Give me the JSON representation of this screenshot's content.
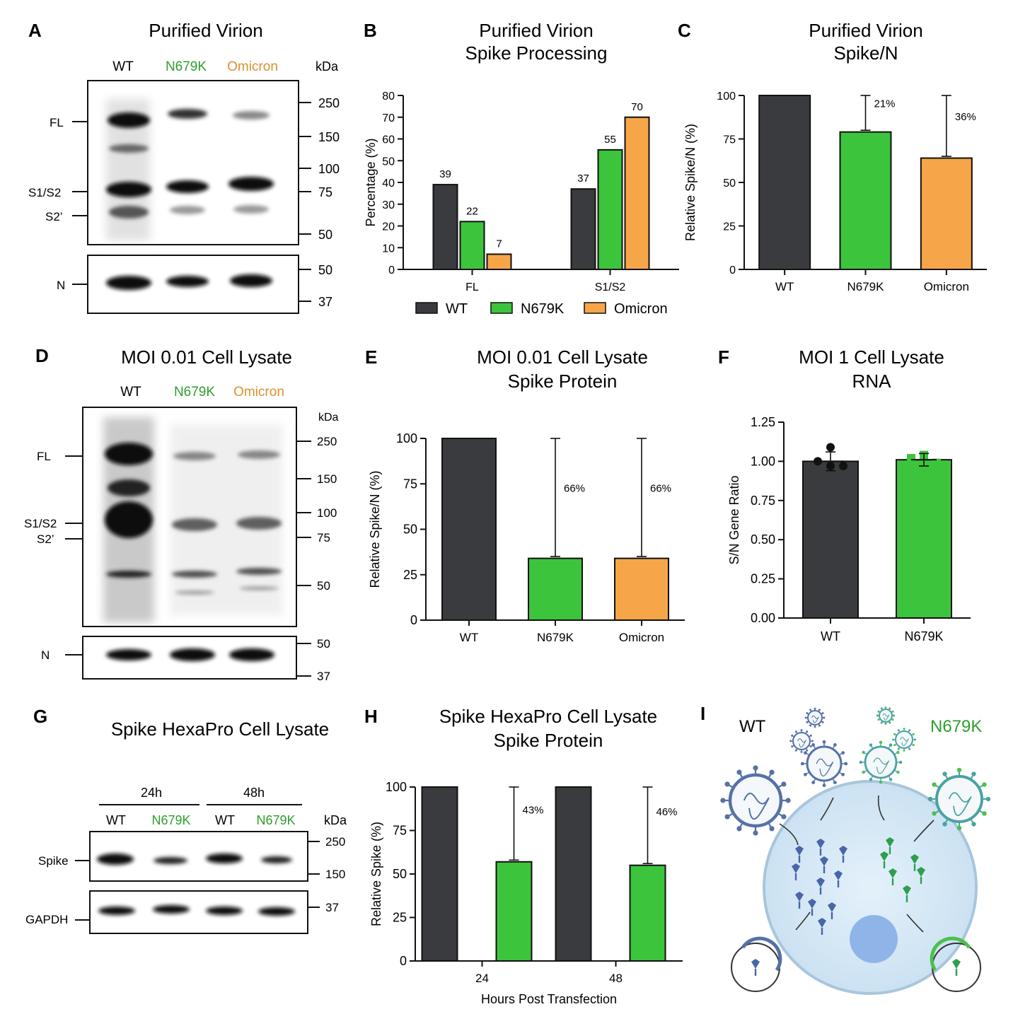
{
  "colors": {
    "WT": "#3a3b3e",
    "N679K": "#3cc43c",
    "Omicron": "#f6a548",
    "N679K_text": "#2e9e2e",
    "Omicron_text": "#d9902e"
  },
  "panels": {
    "A": {
      "letter": "A",
      "title": "Purified Virion",
      "lanes": [
        "WT",
        "N679K",
        "Omicron"
      ],
      "kda": "kDa",
      "markers_top": [
        "250",
        "150",
        "100",
        "75",
        "50"
      ],
      "markers_bottom": [
        "50",
        "37"
      ],
      "bands": [
        "FL",
        "S1/S2",
        "S2’",
        "N"
      ]
    },
    "D": {
      "letter": "D",
      "title": "MOI 0.01 Cell Lysate",
      "lanes": [
        "WT",
        "N679K",
        "Omicron"
      ],
      "kda": "kDa",
      "markers_top": [
        "250",
        "150",
        "100",
        "75",
        "50"
      ],
      "markers_bottom": [
        "50",
        "37"
      ],
      "bands": [
        "FL",
        "S1/S2",
        "S2’",
        "N"
      ]
    },
    "G": {
      "letter": "G",
      "title": "Spike HexaPro Cell Lysate",
      "groups": [
        "24h",
        "48h"
      ],
      "lanes": [
        "WT",
        "N679K",
        "WT",
        "N679K"
      ],
      "kda": "kDa",
      "markers_top": [
        "250",
        "150"
      ],
      "markers_bottom": [
        "37"
      ],
      "bands": [
        "Spike",
        "GAPDH"
      ]
    },
    "I": {
      "letter": "I",
      "left_label": "WT",
      "right_label": "N679K"
    }
  },
  "chart_data": [
    {
      "panel": "B",
      "letter": "B",
      "type": "bar",
      "title": "Purified Virion",
      "subtitle": "Spike Processing",
      "categories": [
        "FL",
        "S1/S2"
      ],
      "ylabel": "Percentage (%)",
      "xlabel": "",
      "ylim": [
        0,
        80
      ],
      "yticks": [
        0,
        10,
        20,
        30,
        40,
        50,
        60,
        70,
        80
      ],
      "series": [
        {
          "name": "WT",
          "values": [
            39,
            37
          ],
          "labels": [
            "39",
            "37"
          ]
        },
        {
          "name": "N679K",
          "values": [
            22,
            55
          ],
          "labels": [
            "22",
            "55"
          ]
        },
        {
          "name": "Omicron",
          "values": [
            7,
            70
          ],
          "labels": [
            "7",
            "70"
          ]
        }
      ],
      "legend": "bottom"
    },
    {
      "panel": "C",
      "letter": "C",
      "type": "bar",
      "title": "Purified Virion",
      "subtitle": "Spike/N",
      "categories": [
        "WT",
        "N679K",
        "Omicron"
      ],
      "ylabel": "Relative Spike/N (%)",
      "xlabel": "",
      "ylim": [
        0,
        100
      ],
      "yticks": [
        0,
        25,
        50,
        75,
        100
      ],
      "values": [
        100,
        79,
        64
      ],
      "error_top": [
        null,
        100,
        100
      ],
      "error_bottom": [
        null,
        80,
        65
      ],
      "annotations": [
        "",
        "21%",
        "36%"
      ]
    },
    {
      "panel": "E",
      "letter": "E",
      "type": "bar",
      "title": "MOI 0.01 Cell Lysate",
      "subtitle": "Spike Protein",
      "categories": [
        "WT",
        "N679K",
        "Omicron"
      ],
      "ylabel": "Relative Spike/N (%)",
      "xlabel": "",
      "ylim": [
        0,
        100
      ],
      "yticks": [
        0,
        25,
        50,
        75,
        100
      ],
      "values": [
        100,
        34,
        34
      ],
      "error_top": [
        null,
        100,
        100
      ],
      "error_bottom": [
        null,
        35,
        35
      ],
      "annotations": [
        "",
        "66%",
        "66%"
      ]
    },
    {
      "panel": "F",
      "letter": "F",
      "type": "bar",
      "title": "MOI 1 Cell Lysate",
      "subtitle": "RNA",
      "categories": [
        "WT",
        "N679K"
      ],
      "ylabel": "S/N Gene Ratio",
      "xlabel": "",
      "ylim": [
        0,
        1.25
      ],
      "yticks": [
        "0.00",
        "0.25",
        "0.50",
        "0.75",
        "1.00",
        "1.25"
      ],
      "values": [
        1.0,
        1.01
      ],
      "sd": [
        0.06,
        0.04
      ],
      "points": [
        [
          1.09,
          1.0,
          0.97,
          0.97
        ],
        [
          1.04,
          1.02,
          0.99,
          0.97
        ]
      ]
    },
    {
      "panel": "H",
      "letter": "H",
      "type": "bar",
      "title": "Spike HexaPro Cell Lysate",
      "subtitle": "Spike Protein",
      "categories": [
        "24",
        "48"
      ],
      "ylabel": "Relative Spike (%)",
      "xlabel": "Hours Post Transfection",
      "ylim": [
        0,
        100
      ],
      "yticks": [
        0,
        25,
        50,
        75,
        100
      ],
      "series": [
        {
          "name": "WT",
          "values": [
            100,
            100
          ]
        },
        {
          "name": "N679K",
          "values": [
            57,
            55
          ],
          "error_top": [
            100,
            100
          ],
          "error_bottom": [
            58,
            56
          ],
          "annotations": [
            "43%",
            "46%"
          ]
        }
      ]
    }
  ]
}
